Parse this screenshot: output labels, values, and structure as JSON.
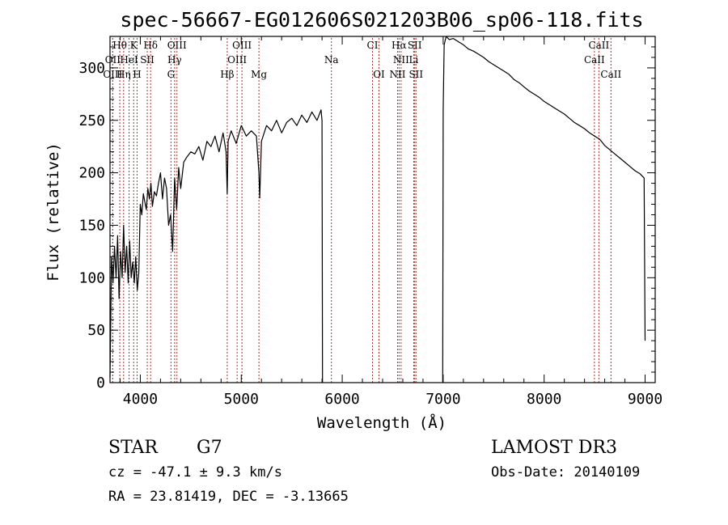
{
  "chart_data": {
    "type": "line",
    "title": "spec-56667-EG012606S021203B06_sp06-118.fits",
    "xlabel": "Wavelength (Å)",
    "ylabel": "Flux (relative)",
    "xlim": [
      3700,
      9100
    ],
    "ylim": [
      0,
      330
    ],
    "xticks": [
      4000,
      5000,
      6000,
      7000,
      8000,
      9000
    ],
    "yticks": [
      0,
      50,
      100,
      150,
      200,
      250,
      300
    ],
    "series": [
      {
        "segments": [
          {
            "x": [
              3700,
              3715,
              3730,
              3745,
              3760,
              3775,
              3790,
              3805,
              3820,
              3835,
              3850,
              3865,
              3880,
              3895,
              3910,
              3925,
              3940,
              3955,
              3970,
              3985,
              4000,
              4015,
              4030,
              4045,
              4060,
              4075,
              4090,
              4105,
              4120,
              4140,
              4160,
              4180,
              4200,
              4220,
              4240,
              4260,
              4280,
              4300,
              4320,
              4340,
              4360,
              4380,
              4400,
              4430,
              4460,
              4500,
              4540,
              4580,
              4620,
              4660,
              4700,
              4740,
              4780,
              4820,
              4850,
              4861,
              4870,
              4900,
              4950,
              5000,
              5050,
              5100,
              5150,
              5175,
              5183,
              5200,
              5250,
              5300,
              5350,
              5400,
              5450,
              5500,
              5550,
              5600,
              5650,
              5700,
              5750,
              5790,
              5800,
              5805
            ],
            "y": [
              5,
              120,
              95,
              130,
              100,
              140,
              80,
              125,
              100,
              150,
              105,
              130,
              95,
              135,
              100,
              115,
              95,
              120,
              88,
              105,
              170,
              160,
              180,
              172,
              165,
              185,
              175,
              190,
              168,
              182,
              178,
              190,
              200,
              175,
              195,
              185,
              150,
              160,
              125,
              195,
              165,
              205,
              185,
              210,
              215,
              220,
              218,
              225,
              212,
              230,
              225,
              235,
              220,
              238,
              220,
              180,
              230,
              240,
              228,
              245,
              235,
              240,
              235,
              200,
              176,
              230,
              245,
              240,
              250,
              238,
              248,
              252,
              245,
              255,
              248,
              258,
              250,
              260,
              250,
              0
            ]
          },
          {
            "x": [
              6995,
              7000,
              7010,
              7030,
              7060,
              7100,
              7150,
              7200,
              7250,
              7300,
              7350,
              7400,
              7450,
              7500,
              7550,
              7600,
              7650,
              7700,
              7750,
              7800,
              7850,
              7900,
              7950,
              8000,
              8050,
              8100,
              8150,
              8200,
              8250,
              8300,
              8350,
              8400,
              8450,
              8500,
              8550,
              8600,
              8650,
              8700,
              8750,
              8800,
              8850,
              8900,
              8950,
              8990,
              9000
            ],
            "y": [
              0,
              260,
              322,
              330,
              327,
              328,
              325,
              322,
              318,
              316,
              313,
              310,
              306,
              303,
              300,
              297,
              294,
              289,
              286,
              282,
              278,
              275,
              272,
              268,
              265,
              262,
              259,
              256,
              252,
              248,
              245,
              242,
              238,
              235,
              232,
              226,
              222,
              218,
              214,
              210,
              206,
              202,
              199,
              195,
              40
            ]
          }
        ]
      }
    ],
    "line_markers": [
      {
        "label": "Hθ",
        "x": 3797,
        "row": 0
      },
      {
        "label": "K",
        "x": 3934,
        "row": 0
      },
      {
        "label": "Hδ",
        "x": 4102,
        "row": 0
      },
      {
        "label": "OIII",
        "x": 4363,
        "row": 0
      },
      {
        "label": "OIII",
        "x": 5007,
        "row": 0
      },
      {
        "label": "CI",
        "x": 6300,
        "row": 0
      },
      {
        "label": "Hα",
        "x": 6563,
        "row": 0
      },
      {
        "label": "SII",
        "x": 6718,
        "row": 0
      },
      {
        "label": "CaII",
        "x": 8542,
        "row": 0
      },
      {
        "label": "OII",
        "x": 3727,
        "row": 1
      },
      {
        "label": "HeI",
        "x": 3889,
        "row": 1
      },
      {
        "label": "SII",
        "x": 4069,
        "row": 1
      },
      {
        "label": "Hγ",
        "x": 4340,
        "row": 1
      },
      {
        "label": "OIII",
        "x": 4959,
        "row": 1
      },
      {
        "label": "Na",
        "x": 5893,
        "row": 1
      },
      {
        "label": "NII",
        "x": 6583,
        "row": 1
      },
      {
        "label": "Li",
        "x": 6708,
        "row": 1
      },
      {
        "label": "CaII",
        "x": 8498,
        "row": 1
      },
      {
        "label": "OIII",
        "x": 3727,
        "row": 2
      },
      {
        "label": "Hη",
        "x": 3835,
        "row": 2
      },
      {
        "label": "H",
        "x": 3968,
        "row": 2
      },
      {
        "label": "G",
        "x": 4304,
        "row": 2
      },
      {
        "label": "Hβ",
        "x": 4861,
        "row": 2
      },
      {
        "label": "Mg",
        "x": 5175,
        "row": 2
      },
      {
        "label": "OI",
        "x": 6364,
        "row": 2
      },
      {
        "label": "NII",
        "x": 6548,
        "row": 2
      },
      {
        "label": "SII",
        "x": 6731,
        "row": 2
      },
      {
        "label": "CaII",
        "x": 8662,
        "row": 2
      }
    ]
  },
  "info": {
    "class": "STAR",
    "subclass": "G7",
    "survey": "LAMOST DR3",
    "cz": "cz = -47.1 ± 9.3 km/s",
    "obs_date": "Obs-Date: 20140109",
    "coords": "RA =  23.81419, DEC =  -3.13665"
  }
}
